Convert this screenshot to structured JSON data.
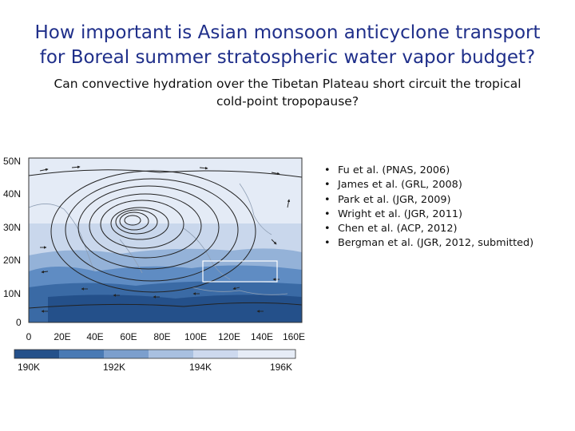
{
  "slide": {
    "title_line1": "How important is Asian monsoon anticyclone transport",
    "title_line2": "for Boreal summer stratospheric water vapor budget?",
    "subtitle_line1": "Can convective hydration over the Tibetan Plateau short circuit the tropical",
    "subtitle_line2": "cold-point tropopause?"
  },
  "map": {
    "lat_labels": [
      "50N",
      "40N",
      "30N",
      "20N",
      "10N",
      "0"
    ],
    "lon_labels": [
      "0",
      "20E",
      "40E",
      "60E",
      "80E",
      "100E",
      "120E",
      "140E",
      "160E"
    ],
    "colorbar_labels": [
      "190K",
      "192K",
      "194K",
      "196K"
    ],
    "colorbar_colors": [
      "#24508a",
      "#4a7ab4",
      "#7c9fcd",
      "#a9c0e0",
      "#cdd9ee",
      "#e6ecf6"
    ]
  },
  "references": {
    "bullet": "•",
    "items": [
      "Fu et al. (PNAS, 2006)",
      "James et al. (GRL, 2008)",
      "Park et al. (JGR, 2009)",
      "Wright et al. (JGR, 2011)",
      "Chen et al. (ACP, 2012)",
      "Bergman et al. (JGR, 2012, submitted)"
    ]
  }
}
